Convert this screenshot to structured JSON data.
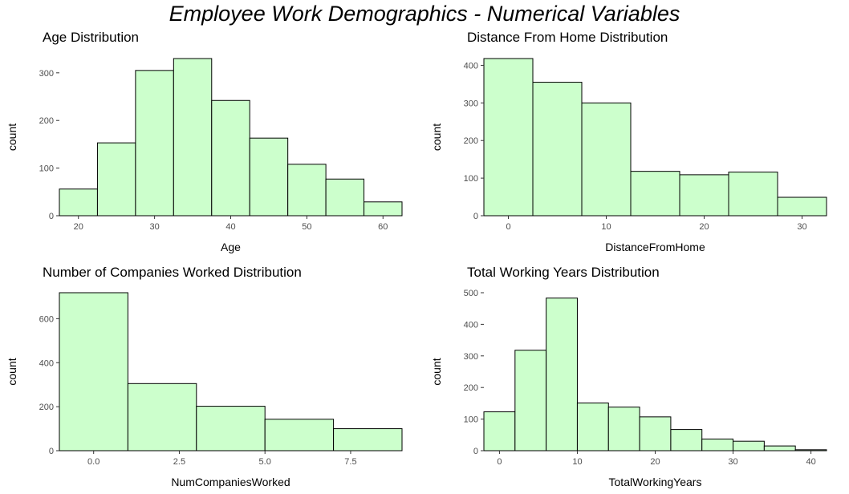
{
  "title": "Employee Work Demographics - Numerical Variables",
  "style": {
    "bar_fill": "#ccffcc",
    "bar_stroke": "#000000",
    "axis_color": "#333333",
    "tick_text_color": "#4d4d4d"
  },
  "chart_data": [
    {
      "type": "bar",
      "title": "Age Distribution",
      "xlabel": "Age",
      "ylabel": "count",
      "grid": false,
      "bins": [
        {
          "start": 17.5,
          "end": 22.5,
          "count": 56
        },
        {
          "start": 22.5,
          "end": 27.5,
          "count": 153
        },
        {
          "start": 27.5,
          "end": 32.5,
          "count": 305
        },
        {
          "start": 32.5,
          "end": 37.5,
          "count": 330
        },
        {
          "start": 37.5,
          "end": 42.5,
          "count": 242
        },
        {
          "start": 42.5,
          "end": 47.5,
          "count": 163
        },
        {
          "start": 47.5,
          "end": 52.5,
          "count": 108
        },
        {
          "start": 52.5,
          "end": 57.5,
          "count": 77
        },
        {
          "start": 57.5,
          "end": 62.5,
          "count": 29
        }
      ],
      "xlim": [
        17.5,
        62.5
      ],
      "ylim": [
        0,
        330
      ],
      "xticks": [
        20,
        30,
        40,
        50,
        60
      ],
      "xtick_labels": [
        "20",
        "30",
        "40",
        "50",
        "60"
      ],
      "yticks": [
        0,
        100,
        200,
        300
      ],
      "ytick_labels": [
        "0",
        "100",
        "200",
        "300"
      ]
    },
    {
      "type": "bar",
      "title": "Distance From Home Distribution",
      "xlabel": "DistanceFromHome",
      "ylabel": "count",
      "grid": false,
      "bins": [
        {
          "start": -2.5,
          "end": 2.5,
          "count": 418
        },
        {
          "start": 2.5,
          "end": 7.5,
          "count": 355
        },
        {
          "start": 7.5,
          "end": 12.5,
          "count": 300
        },
        {
          "start": 12.5,
          "end": 17.5,
          "count": 118
        },
        {
          "start": 17.5,
          "end": 22.5,
          "count": 109
        },
        {
          "start": 22.5,
          "end": 27.5,
          "count": 116
        },
        {
          "start": 27.5,
          "end": 32.5,
          "count": 49
        }
      ],
      "xlim": [
        -2.5,
        32.5
      ],
      "ylim": [
        0,
        418
      ],
      "xticks": [
        0,
        10,
        20,
        30
      ],
      "xtick_labels": [
        "0",
        "10",
        "20",
        "30"
      ],
      "yticks": [
        0,
        100,
        200,
        300,
        400
      ],
      "ytick_labels": [
        "0",
        "100",
        "200",
        "300",
        "400"
      ]
    },
    {
      "type": "bar",
      "title": "Number of Companies Worked Distribution",
      "xlabel": "NumCompaniesWorked",
      "ylabel": "count",
      "grid": false,
      "bins": [
        {
          "start": -1,
          "end": 1,
          "count": 718
        },
        {
          "start": 1,
          "end": 3,
          "count": 305
        },
        {
          "start": 3,
          "end": 5,
          "count": 202
        },
        {
          "start": 5,
          "end": 7,
          "count": 143
        },
        {
          "start": 7,
          "end": 9,
          "count": 100
        }
      ],
      "xlim": [
        -1,
        9
      ],
      "ylim": [
        0,
        718
      ],
      "xticks": [
        0,
        2.5,
        5,
        7.5
      ],
      "xtick_labels": [
        "0.0",
        "2.5",
        "5.0",
        "7.5"
      ],
      "yticks": [
        0,
        200,
        400,
        600
      ],
      "ytick_labels": [
        "0",
        "200",
        "400",
        "600"
      ]
    },
    {
      "type": "bar",
      "title": "Total Working Years Distribution",
      "xlabel": "TotalWorkingYears",
      "ylabel": "count",
      "grid": false,
      "bins": [
        {
          "start": -2,
          "end": 2,
          "count": 123
        },
        {
          "start": 2,
          "end": 6,
          "count": 318
        },
        {
          "start": 6,
          "end": 10,
          "count": 483
        },
        {
          "start": 10,
          "end": 14,
          "count": 151
        },
        {
          "start": 14,
          "end": 18,
          "count": 138
        },
        {
          "start": 18,
          "end": 22,
          "count": 107
        },
        {
          "start": 22,
          "end": 26,
          "count": 67
        },
        {
          "start": 26,
          "end": 30,
          "count": 37
        },
        {
          "start": 30,
          "end": 34,
          "count": 30
        },
        {
          "start": 34,
          "end": 38,
          "count": 15
        },
        {
          "start": 38,
          "end": 42,
          "count": 3
        }
      ],
      "xlim": [
        -2,
        42
      ],
      "ylim": [
        0,
        500
      ],
      "xticks": [
        0,
        10,
        20,
        30,
        40
      ],
      "xtick_labels": [
        "0",
        "10",
        "20",
        "30",
        "40"
      ],
      "yticks": [
        0,
        100,
        200,
        300,
        400,
        500
      ],
      "ytick_labels": [
        "0",
        "100",
        "200",
        "300",
        "400",
        "500"
      ]
    }
  ]
}
